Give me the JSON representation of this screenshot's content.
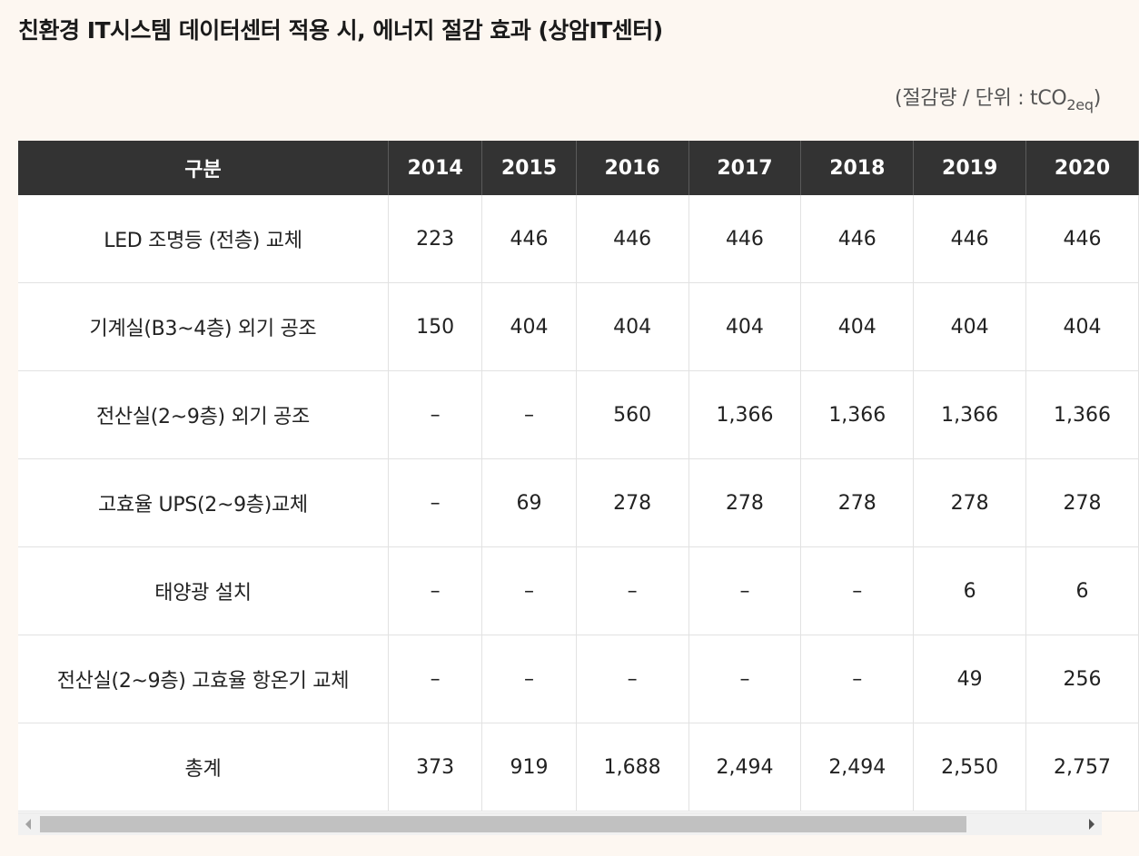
{
  "title": "친환경 IT시스템 데이터센터 적용 시, 에너지 절감 효과 (상암IT센터)",
  "unit": {
    "prefix": "(절감량 / 단위 : tCO",
    "sub": "2eq",
    "suffix": ")"
  },
  "table": {
    "header": [
      "구분",
      "2014",
      "2015",
      "2016",
      "2017",
      "2018",
      "2019",
      "2020"
    ],
    "rows": [
      {
        "label": "LED 조명등 (전층) 교체",
        "values": [
          "223",
          "446",
          "446",
          "446",
          "446",
          "446",
          "446"
        ]
      },
      {
        "label": "기계실(B3~4층) 외기 공조",
        "values": [
          "150",
          "404",
          "404",
          "404",
          "404",
          "404",
          "404"
        ]
      },
      {
        "label": "전산실(2~9층) 외기 공조",
        "values": [
          "–",
          "–",
          "560",
          "1,366",
          "1,366",
          "1,366",
          "1,366"
        ]
      },
      {
        "label": "고효율 UPS(2~9층)교체",
        "values": [
          "–",
          "69",
          "278",
          "278",
          "278",
          "278",
          "278"
        ]
      },
      {
        "label": "태양광 설치",
        "values": [
          "–",
          "–",
          "–",
          "–",
          "–",
          "6",
          "6"
        ]
      },
      {
        "label": "전산실(2~9층) 고효율 항온기 교체",
        "values": [
          "–",
          "–",
          "–",
          "–",
          "–",
          "49",
          "256"
        ]
      },
      {
        "label": "총계",
        "values": [
          "373",
          "919",
          "1,688",
          "2,494",
          "2,494",
          "2,550",
          "2,757"
        ]
      }
    ]
  }
}
